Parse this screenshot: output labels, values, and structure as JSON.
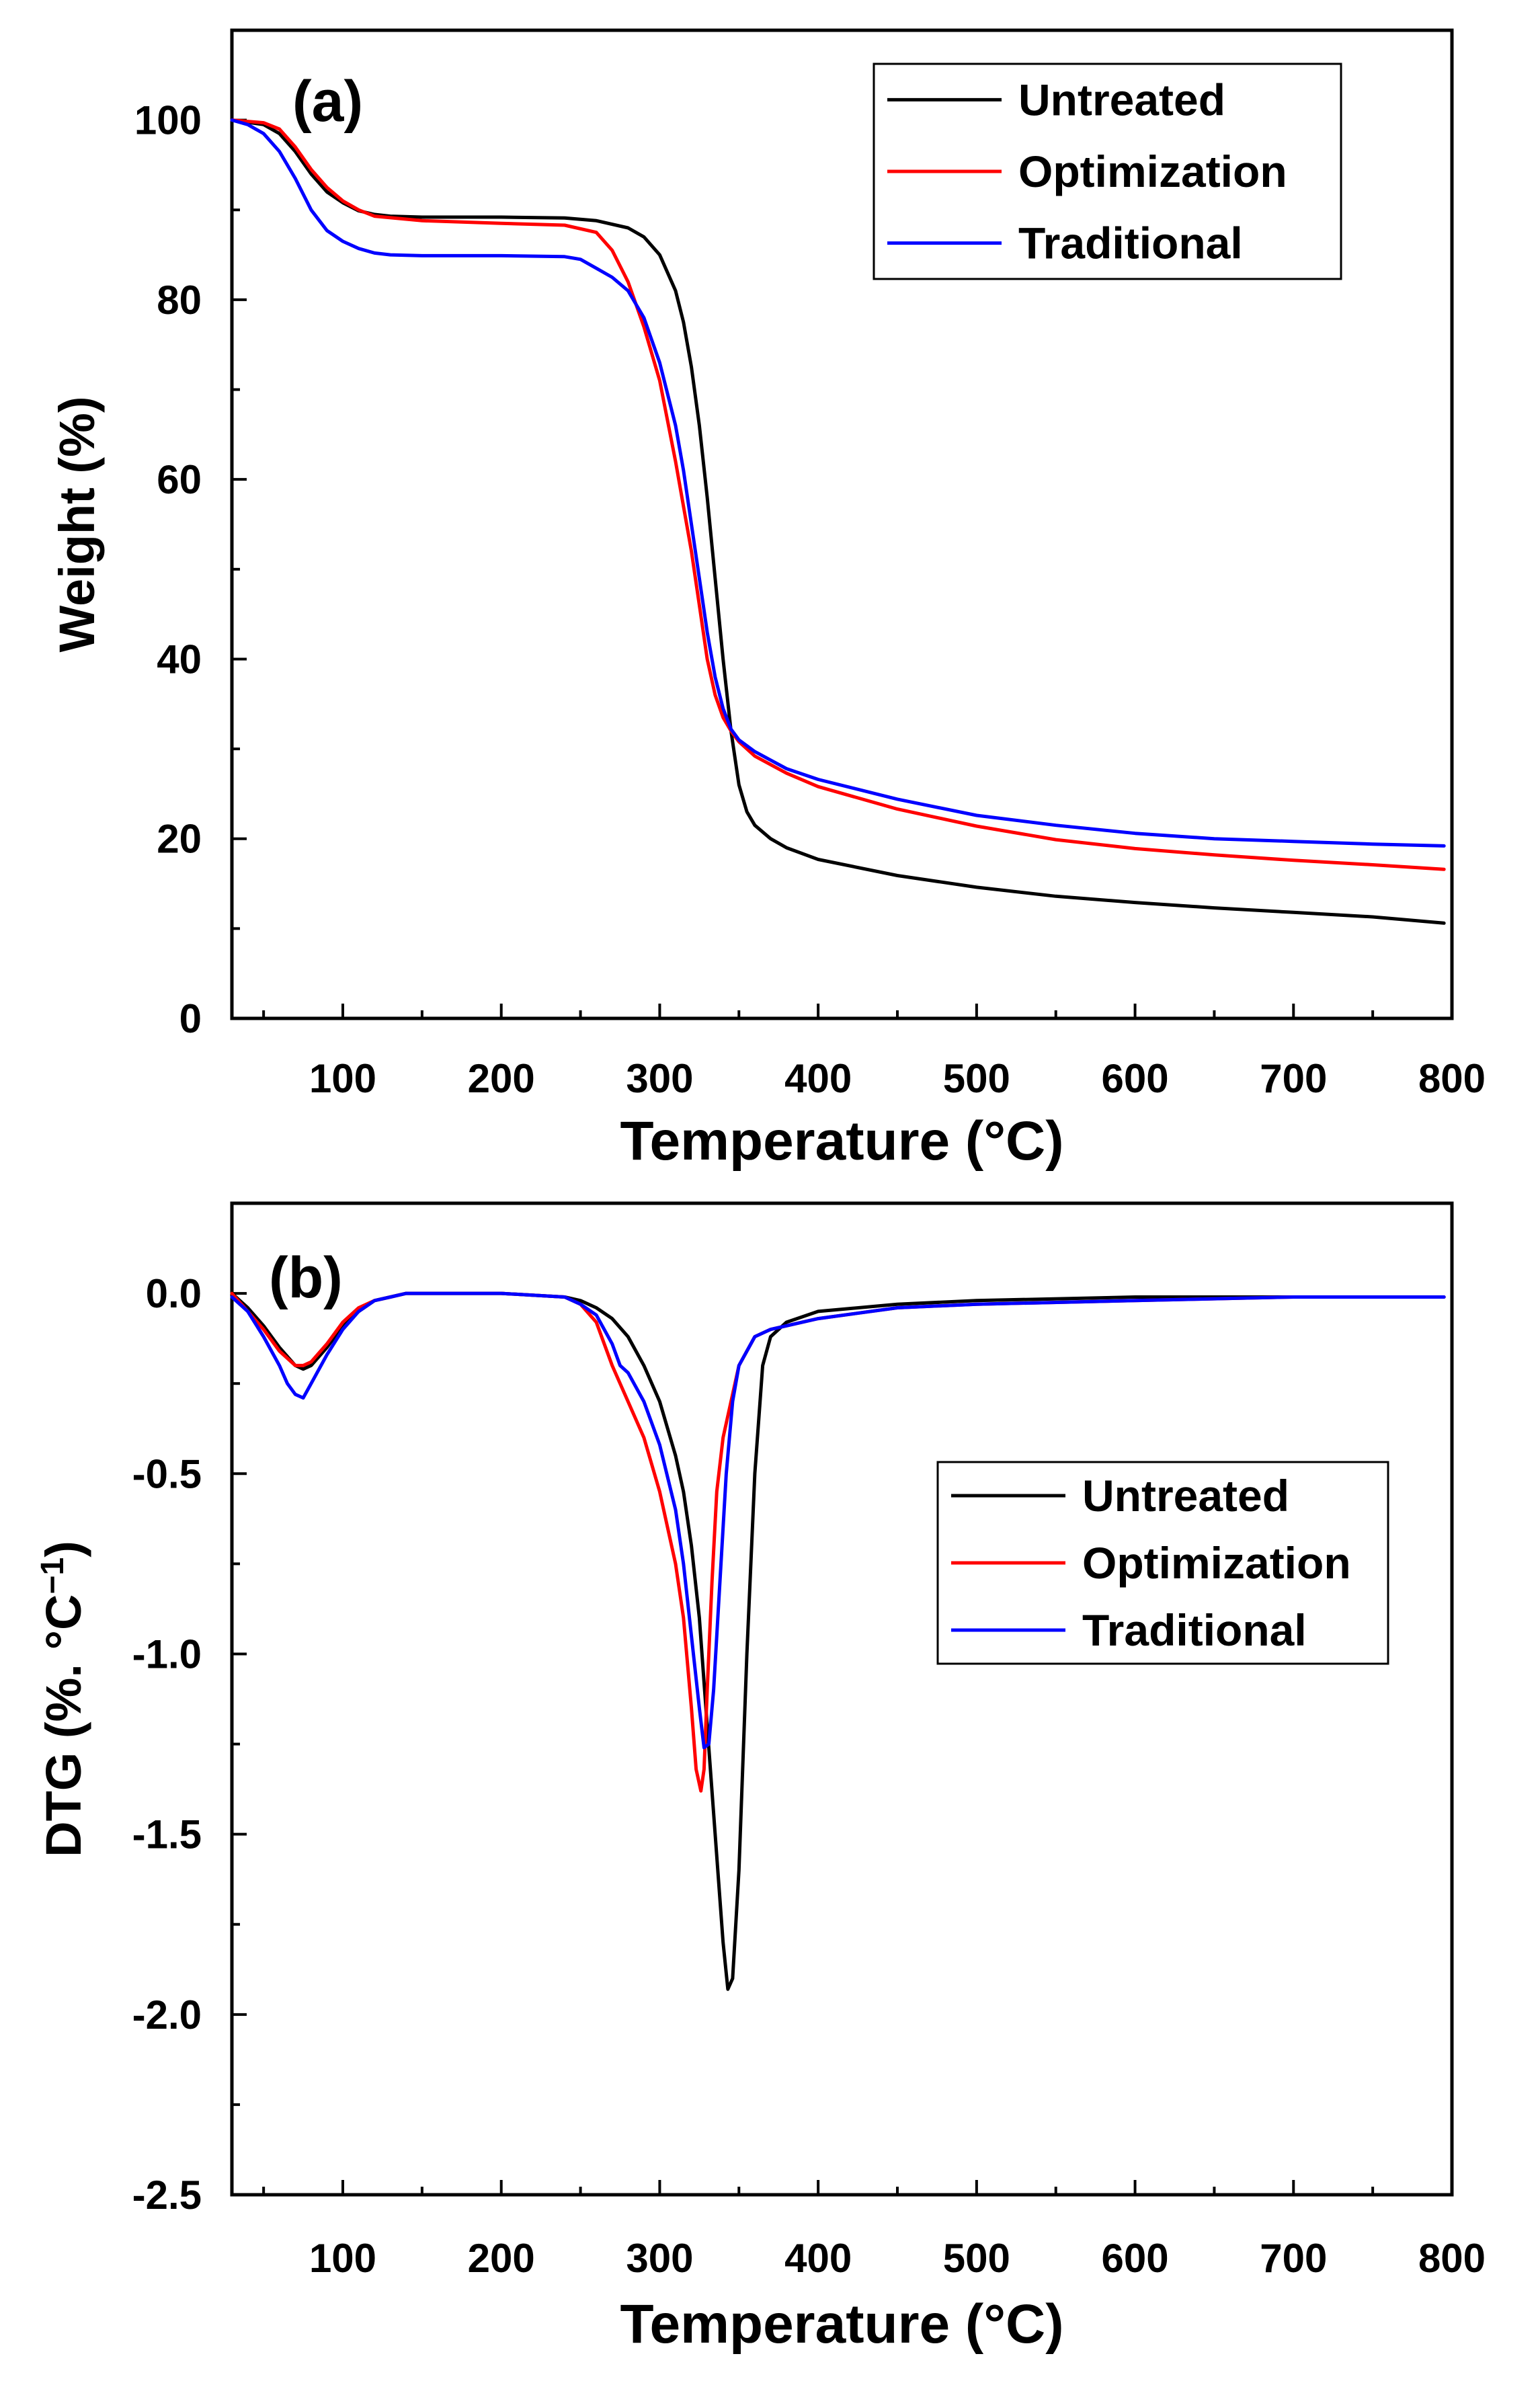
{
  "chart_data": [
    {
      "type": "line",
      "panel_label": "(a)",
      "xlabel": "Temperature (°C)",
      "ylabel": "Weight (%)",
      "xlim": [
        30,
        800
      ],
      "ylim": [
        0,
        110
      ],
      "xticks": [
        100,
        200,
        300,
        400,
        500,
        600,
        700,
        800
      ],
      "yticks": [
        0,
        20,
        40,
        60,
        80,
        100
      ],
      "legend_position": "top-right",
      "series": [
        {
          "name": "Untreated",
          "color": "#000000",
          "x": [
            30,
            50,
            60,
            70,
            80,
            90,
            100,
            110,
            120,
            130,
            150,
            200,
            240,
            260,
            280,
            290,
            300,
            310,
            315,
            320,
            325,
            330,
            335,
            340,
            345,
            350,
            355,
            360,
            370,
            380,
            400,
            450,
            500,
            550,
            600,
            650,
            700,
            750,
            795
          ],
          "y": [
            100,
            99.5,
            98.5,
            96.5,
            94,
            92,
            90.8,
            89.9,
            89.5,
            89.3,
            89.2,
            89.2,
            89.1,
            88.8,
            88,
            87,
            85,
            81,
            77.5,
            72.5,
            66,
            58,
            49,
            40,
            32,
            26,
            23,
            21.5,
            20,
            19,
            17.7,
            15.9,
            14.6,
            13.6,
            12.9,
            12.3,
            11.8,
            11.3,
            10.6
          ]
        },
        {
          "name": "Optimization",
          "color": "#ff0000",
          "x": [
            30,
            50,
            60,
            70,
            80,
            90,
            100,
            110,
            120,
            150,
            200,
            240,
            260,
            270,
            280,
            290,
            300,
            310,
            320,
            325,
            330,
            335,
            340,
            345,
            350,
            360,
            380,
            400,
            450,
            500,
            550,
            600,
            650,
            700,
            750,
            795
          ],
          "y": [
            100,
            99.7,
            99,
            97,
            94.5,
            92.5,
            91,
            90,
            89.3,
            88.8,
            88.5,
            88.3,
            87.5,
            85.5,
            82,
            77,
            71,
            62,
            52,
            46,
            40,
            36,
            33.5,
            32,
            30.8,
            29.2,
            27.3,
            25.8,
            23.3,
            21.4,
            19.9,
            18.9,
            18.2,
            17.6,
            17.1,
            16.6
          ]
        },
        {
          "name": "Traditional",
          "color": "#0000ff",
          "x": [
            30,
            40,
            50,
            60,
            70,
            80,
            90,
            100,
            110,
            120,
            130,
            150,
            200,
            240,
            250,
            260,
            270,
            280,
            290,
            300,
            310,
            315,
            320,
            325,
            330,
            335,
            340,
            345,
            350,
            360,
            380,
            400,
            450,
            500,
            550,
            600,
            650,
            700,
            750,
            795
          ],
          "y": [
            100,
            99.5,
            98.5,
            96.5,
            93.5,
            90,
            87.7,
            86.5,
            85.7,
            85.2,
            85,
            84.9,
            84.9,
            84.8,
            84.5,
            83.5,
            82.5,
            81,
            78,
            73,
            66,
            61,
            55,
            49,
            43,
            38,
            34.5,
            32.2,
            31,
            29.7,
            27.8,
            26.6,
            24.4,
            22.6,
            21.5,
            20.6,
            20,
            19.7,
            19.4,
            19.2
          ]
        }
      ]
    },
    {
      "type": "line",
      "panel_label": "(b)",
      "xlabel": "Temperature (°C)",
      "ylabel": "DTG (%. °C",
      "ylabel_sup": "−1",
      "ylabel_close": ")",
      "xlim": [
        30,
        800
      ],
      "ylim": [
        -2.5,
        0.25
      ],
      "xticks": [
        100,
        200,
        300,
        400,
        500,
        600,
        700,
        800
      ],
      "yticks": [
        0.0,
        -0.5,
        -1.0,
        -1.5,
        -2.0,
        -2.5
      ],
      "ytick_labels": [
        "0.0",
        "-0.5",
        "-1.0",
        "-1.5",
        "-2.0",
        "-2.5"
      ],
      "legend_position": "center-right",
      "series": [
        {
          "name": "Untreated",
          "color": "#000000",
          "x": [
            30,
            40,
            50,
            60,
            70,
            75,
            80,
            90,
            100,
            110,
            120,
            130,
            140,
            150,
            200,
            240,
            250,
            260,
            270,
            280,
            290,
            300,
            310,
            315,
            320,
            325,
            330,
            335,
            340,
            343,
            346,
            350,
            355,
            360,
            365,
            370,
            380,
            400,
            450,
            500,
            600,
            700,
            795
          ],
          "y": [
            0.0,
            -0.04,
            -0.09,
            -0.15,
            -0.2,
            -0.21,
            -0.2,
            -0.15,
            -0.09,
            -0.05,
            -0.02,
            -0.01,
            0.0,
            0.0,
            0.0,
            -0.01,
            -0.02,
            -0.04,
            -0.07,
            -0.12,
            -0.2,
            -0.3,
            -0.45,
            -0.55,
            -0.7,
            -0.9,
            -1.2,
            -1.5,
            -1.8,
            -1.93,
            -1.9,
            -1.6,
            -1.0,
            -0.5,
            -0.2,
            -0.12,
            -0.08,
            -0.05,
            -0.03,
            -0.02,
            -0.01,
            -0.01,
            -0.01
          ]
        },
        {
          "name": "Optimization",
          "color": "#ff0000",
          "x": [
            30,
            40,
            50,
            60,
            70,
            75,
            80,
            90,
            100,
            110,
            120,
            130,
            140,
            150,
            200,
            240,
            250,
            260,
            270,
            280,
            290,
            300,
            310,
            315,
            320,
            323,
            326,
            328,
            330,
            333,
            336,
            340,
            345,
            350,
            360,
            370,
            400,
            450,
            500,
            600,
            700,
            795
          ],
          "y": [
            0.0,
            -0.05,
            -0.1,
            -0.16,
            -0.2,
            -0.2,
            -0.19,
            -0.14,
            -0.08,
            -0.04,
            -0.02,
            -0.01,
            0.0,
            0.0,
            0.0,
            -0.01,
            -0.03,
            -0.08,
            -0.2,
            -0.3,
            -0.4,
            -0.55,
            -0.75,
            -0.9,
            -1.15,
            -1.32,
            -1.38,
            -1.32,
            -1.1,
            -0.8,
            -0.55,
            -0.4,
            -0.3,
            -0.2,
            -0.12,
            -0.1,
            -0.07,
            -0.04,
            -0.03,
            -0.02,
            -0.01,
            -0.01
          ]
        },
        {
          "name": "Traditional",
          "color": "#0000ff",
          "x": [
            30,
            40,
            50,
            60,
            65,
            70,
            75,
            80,
            90,
            100,
            110,
            120,
            130,
            140,
            150,
            200,
            240,
            250,
            260,
            270,
            275,
            280,
            290,
            300,
            310,
            315,
            320,
            325,
            328,
            331,
            334,
            338,
            342,
            346,
            350,
            360,
            370,
            400,
            450,
            500,
            600,
            700,
            795
          ],
          "y": [
            -0.01,
            -0.05,
            -0.12,
            -0.2,
            -0.25,
            -0.28,
            -0.29,
            -0.25,
            -0.17,
            -0.1,
            -0.05,
            -0.02,
            -0.01,
            0.0,
            0.0,
            0.0,
            -0.01,
            -0.03,
            -0.06,
            -0.14,
            -0.2,
            -0.22,
            -0.3,
            -0.42,
            -0.6,
            -0.75,
            -0.95,
            -1.15,
            -1.26,
            -1.25,
            -1.1,
            -0.8,
            -0.5,
            -0.3,
            -0.2,
            -0.12,
            -0.1,
            -0.07,
            -0.04,
            -0.03,
            -0.02,
            -0.01,
            -0.01
          ]
        }
      ]
    }
  ]
}
